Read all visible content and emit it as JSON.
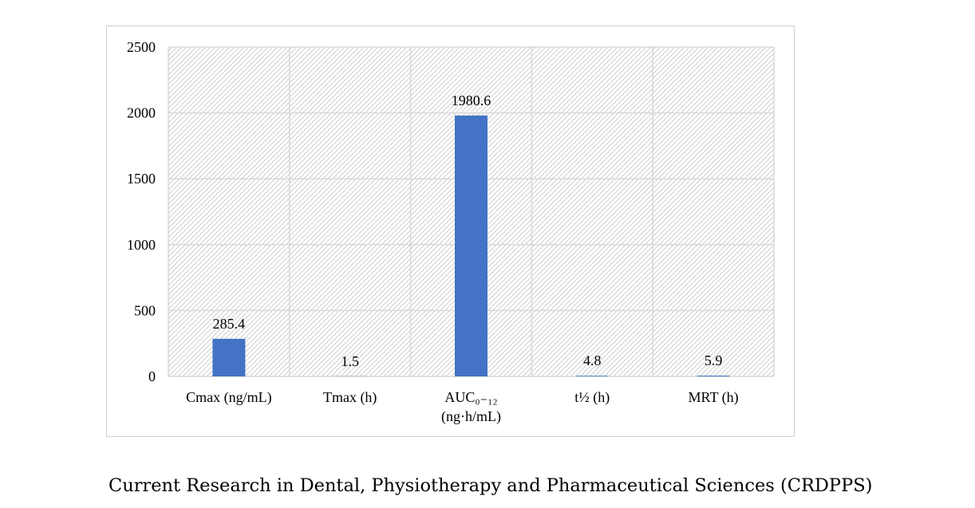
{
  "chart_data": {
    "type": "bar",
    "categories": [
      "Cmax (ng/mL)",
      "Tmax (h)",
      "AUC₀₋₁₂ (ng·h/mL)",
      "t½ (h)",
      "MRT (h)"
    ],
    "category_lines": [
      [
        "Cmax (ng/mL)"
      ],
      [
        "Tmax (h)"
      ],
      [
        "AUC₀₋₁₂",
        "(ng·h/mL)"
      ],
      [
        "t½ (h)"
      ],
      [
        "MRT (h)"
      ]
    ],
    "values": [
      285.4,
      1.5,
      1980.6,
      4.8,
      5.9
    ],
    "data_labels": [
      "285.4",
      "1.5",
      "1980.6",
      "4.8",
      "5.9"
    ],
    "ylim": [
      0,
      2500
    ],
    "yticks": [
      0,
      500,
      1000,
      1500,
      2000,
      2500
    ],
    "ytick_labels": [
      "0",
      "500",
      "1000",
      "1500",
      "2000",
      "2500"
    ],
    "grid": true,
    "bar_color": "#4472C4",
    "title": "",
    "xlabel": "",
    "ylabel": ""
  },
  "caption": "Current Research in Dental, Physiotherapy and Pharmaceutical Sciences (CRDPPS)"
}
